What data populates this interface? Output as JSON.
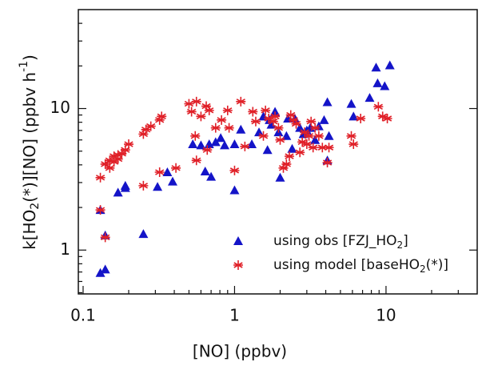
{
  "chart_data": {
    "type": "scatter",
    "xlabel": "[NO] (ppbv)",
    "ylabel": [
      "k[HO",
      "2",
      "(*)][NO] (ppbv h",
      "-1",
      ")"
    ],
    "xscale": "log",
    "yscale": "log",
    "xlim": [
      0.093,
      40
    ],
    "ylim": [
      0.49,
      50
    ],
    "xticks": [
      0.1,
      1,
      10
    ],
    "yticks": [
      1,
      10
    ],
    "legend": "lower right",
    "series": [
      {
        "name": [
          "using obs [FZJ_HO",
          "2",
          "]"
        ],
        "marker": "triangle",
        "color": "#1414c8",
        "x": [
          0.13,
          0.14,
          0.13,
          0.14,
          0.17,
          0.19,
          0.19,
          0.25,
          0.31,
          0.36,
          0.39,
          0.53,
          0.6,
          0.64,
          0.68,
          0.7,
          0.75,
          0.81,
          0.86,
          1.0,
          1.0,
          1.1,
          1.3,
          1.45,
          1.55,
          1.65,
          1.7,
          1.75,
          1.85,
          1.95,
          2.0,
          2.2,
          2.25,
          2.4,
          2.5,
          2.7,
          2.85,
          3.0,
          3.16,
          3.4,
          3.6,
          3.9,
          4.1,
          4.2,
          4.1,
          5.9,
          6.1,
          7.8,
          8.6,
          8.8,
          9.8,
          10.6
        ],
        "values": [
          0.69,
          0.73,
          1.92,
          1.27,
          2.55,
          2.75,
          2.85,
          1.3,
          2.8,
          3.55,
          3.05,
          5.6,
          5.5,
          3.6,
          5.6,
          3.3,
          5.8,
          6.2,
          5.5,
          5.6,
          2.65,
          7.1,
          5.6,
          6.8,
          8.8,
          5.1,
          8.3,
          7.7,
          9.5,
          6.8,
          3.25,
          6.4,
          8.5,
          5.2,
          8.5,
          7.3,
          6.6,
          7.0,
          7.3,
          6.0,
          7.5,
          8.3,
          11.1,
          6.4,
          4.3,
          10.8,
          8.8,
          11.9,
          19.5,
          15.1,
          14.4,
          20.2
        ]
      },
      {
        "name": [
          "using model [baseHO",
          "2",
          "(*)]"
        ],
        "marker": "star",
        "color": "#e02028",
        "x": [
          0.13,
          0.14,
          0.15,
          0.16,
          0.17,
          0.18,
          0.19,
          0.2,
          0.15,
          0.16,
          0.17,
          0.13,
          0.14,
          0.25,
          0.26,
          0.28,
          0.32,
          0.33,
          0.25,
          0.32,
          0.41,
          0.5,
          0.52,
          0.56,
          0.6,
          0.65,
          0.68,
          0.56,
          0.55,
          0.66,
          0.75,
          0.82,
          0.9,
          0.92,
          1.0,
          1.1,
          1.17,
          1.32,
          1.38,
          1.55,
          1.6,
          1.68,
          1.8,
          1.85,
          1.95,
          2.0,
          2.1,
          2.2,
          2.3,
          2.35,
          2.45,
          2.55,
          2.7,
          2.8,
          2.9,
          3.0,
          3.1,
          3.2,
          3.3,
          3.4,
          3.6,
          3.8,
          4.1,
          4.2,
          5.9,
          6.1,
          6.8,
          8.9,
          9.5,
          10.2
        ],
        "values": [
          3.25,
          4.05,
          4.3,
          4.6,
          4.7,
          4.8,
          5.1,
          5.6,
          3.8,
          4.2,
          4.4,
          1.92,
          1.23,
          6.6,
          7.1,
          7.5,
          8.3,
          8.8,
          2.85,
          3.55,
          3.8,
          10.8,
          9.5,
          11.2,
          8.8,
          10.4,
          9.7,
          4.3,
          6.4,
          5.1,
          7.3,
          8.3,
          9.7,
          7.3,
          3.65,
          11.2,
          5.4,
          9.5,
          8.1,
          6.4,
          9.7,
          8.5,
          8.1,
          8.8,
          7.3,
          6.0,
          3.8,
          4.05,
          4.6,
          9.0,
          8.3,
          7.8,
          4.9,
          5.8,
          6.8,
          5.6,
          6.4,
          8.1,
          5.3,
          7.3,
          6.4,
          5.3,
          4.15,
          5.3,
          6.4,
          5.6,
          8.5,
          10.3,
          8.8,
          8.5
        ]
      }
    ]
  }
}
